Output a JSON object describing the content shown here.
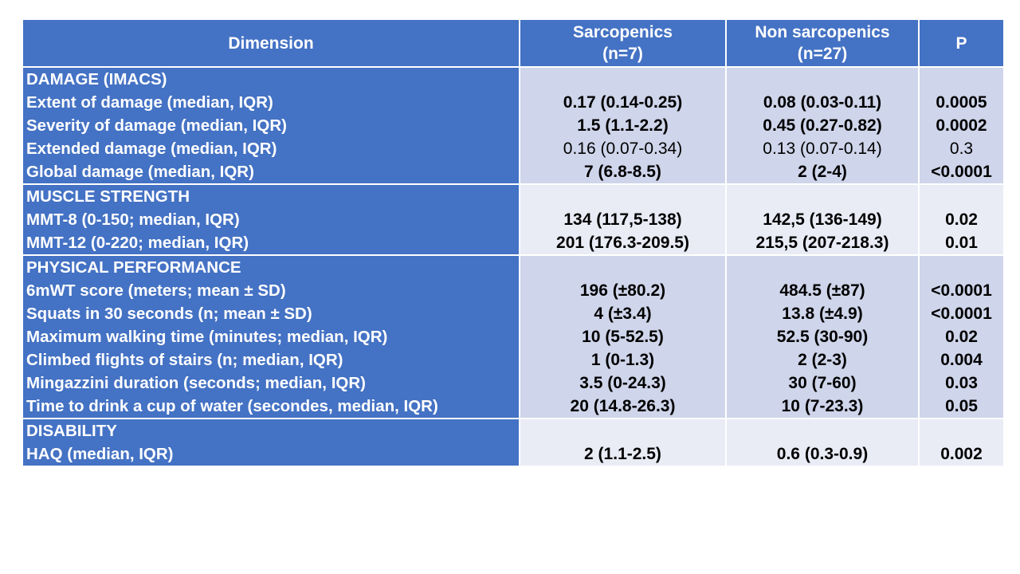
{
  "header": {
    "dimension": "Dimension",
    "group1_line1": "Sarcopenics",
    "group1_line2": "(n=7)",
    "group2_line1": "Non sarcopenics",
    "group2_line2": "(n=27)",
    "p": "P"
  },
  "sections": [
    {
      "title": "DAMAGE (IMACS)",
      "rows": [
        {
          "label": "Extent of damage (median, IQR)",
          "sarcopenics": "0.17 (0.14-0.25)",
          "non_sarcopenics": "0.08 (0.03-0.11)",
          "p": "0.0005",
          "bold": true
        },
        {
          "label": "Severity of damage (median, IQR)",
          "sarcopenics": "1.5 (1.1-2.2)",
          "non_sarcopenics": "0.45 (0.27-0.82)",
          "p": "0.0002",
          "bold": true
        },
        {
          "label": "Extended damage (median, IQR)",
          "sarcopenics": "0.16 (0.07-0.34)",
          "non_sarcopenics": "0.13 (0.07-0.14)",
          "p": "0.3",
          "bold": false
        },
        {
          "label": "Global damage (median, IQR)",
          "sarcopenics": "7 (6.8-8.5)",
          "non_sarcopenics": "2 (2-4)",
          "p": "<0.0001",
          "bold": true
        }
      ]
    },
    {
      "title": "MUSCLE STRENGTH",
      "rows": [
        {
          "label": "MMT-8 (0-150; median, IQR)",
          "sarcopenics": "134 (117,5-138)",
          "non_sarcopenics": "142,5 (136-149)",
          "p": "0.02",
          "bold": true
        },
        {
          "label": "MMT-12 (0-220; median, IQR)",
          "sarcopenics": "201 (176.3-209.5)",
          "non_sarcopenics": "215,5 (207-218.3)",
          "p": "0.01",
          "bold": true
        }
      ]
    },
    {
      "title": "PHYSICAL PERFORMANCE",
      "rows": [
        {
          "label": "6mWT score (meters; mean ± SD)",
          "sarcopenics": "196 (±80.2)",
          "non_sarcopenics": "484.5 (±87)",
          "p": "<0.0001",
          "bold": true
        },
        {
          "label": "Squats in 30 seconds (n; mean ± SD)",
          "sarcopenics": "4 (±3.4)",
          "non_sarcopenics": "13.8 (±4.9)",
          "p": "<0.0001",
          "bold": true
        },
        {
          "label": "Maximum walking time (minutes; median, IQR)",
          "sarcopenics": "10 (5-52.5)",
          "non_sarcopenics": "52.5 (30-90)",
          "p": "0.02",
          "bold": true
        },
        {
          "label": "Climbed flights of stairs (n; median, IQR)",
          "sarcopenics": "1 (0-1.3)",
          "non_sarcopenics": "2 (2-3)",
          "p": "0.004",
          "bold": true
        },
        {
          "label": "Mingazzini duration (seconds; median, IQR)",
          "sarcopenics": "3.5 (0-24.3)",
          "non_sarcopenics": "30 (7-60)",
          "p": "0.03",
          "bold": true
        },
        {
          "label": "Time to drink a cup of water (secondes, median, IQR)",
          "sarcopenics": "20 (14.8-26.3)",
          "non_sarcopenics": "10 (7-23.3)",
          "p": "0.05",
          "bold": true
        }
      ]
    },
    {
      "title": "DISABILITY",
      "rows": [
        {
          "label": "HAQ (median, IQR)",
          "sarcopenics": "2 (1.1-2.5)",
          "non_sarcopenics": "0.6 (0.3-0.9)",
          "p": "0.002",
          "bold": true
        }
      ]
    }
  ],
  "colors": {
    "header_bg": "#4472C4",
    "band_dark": "#CFD5EA",
    "band_light": "#E9EBF5"
  }
}
